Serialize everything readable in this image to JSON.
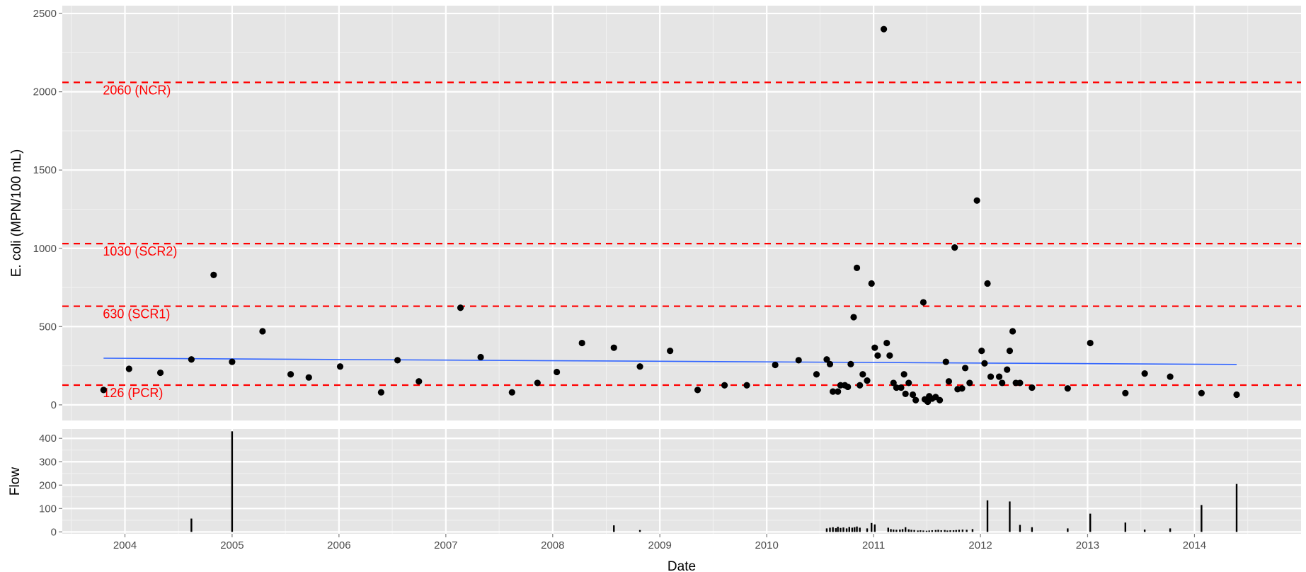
{
  "chart_data": [
    {
      "type": "scatter",
      "panel": "ecoli",
      "ylabel": "E. coli (MPN/100 mL)",
      "ylim": [
        -100,
        2550
      ],
      "y_ticks": [
        0,
        500,
        1000,
        1500,
        2000,
        2500
      ],
      "y_tick_labels": [
        "0",
        "500",
        "1000",
        "1500",
        "2000",
        "2500"
      ],
      "grid": true,
      "colors": {
        "panel_bg": "#e5e5e5",
        "grid": "#ffffff",
        "points": "#000000",
        "trend": "#3366ff",
        "reference": "#ff0000"
      },
      "reference_lines": [
        {
          "value": 2060,
          "label": "2060 (NCR)"
        },
        {
          "value": 1030,
          "label": "1030 (SCR2)"
        },
        {
          "value": 630,
          "label": "630 (SCR1)"
        },
        {
          "value": 126,
          "label": "126 (PCR)"
        }
      ],
      "trend_line": {
        "x": [
          "2003-10-20",
          "2014-05-25"
        ],
        "y": [
          298,
          258
        ]
      },
      "points": [
        [
          "2003-10-20",
          95
        ],
        [
          "2004-01-15",
          230
        ],
        [
          "2004-05-01",
          205
        ],
        [
          "2004-08-15",
          290
        ],
        [
          "2004-10-30",
          830
        ],
        [
          "2005-01-01",
          275
        ],
        [
          "2005-04-15",
          470
        ],
        [
          "2005-07-20",
          195
        ],
        [
          "2005-09-20",
          175
        ],
        [
          "2006-01-05",
          245
        ],
        [
          "2006-05-25",
          80
        ],
        [
          "2006-07-20",
          285
        ],
        [
          "2006-10-01",
          150
        ],
        [
          "2007-02-20",
          620
        ],
        [
          "2007-04-30",
          305
        ],
        [
          "2007-08-15",
          80
        ],
        [
          "2007-11-10",
          140
        ],
        [
          "2008-01-15",
          210
        ],
        [
          "2008-04-10",
          395
        ],
        [
          "2008-07-28",
          365
        ],
        [
          "2008-10-25",
          245
        ],
        [
          "2009-02-05",
          345
        ],
        [
          "2009-05-10",
          95
        ],
        [
          "2009-08-10",
          125
        ],
        [
          "2009-10-25",
          125
        ],
        [
          "2010-01-30",
          255
        ],
        [
          "2010-04-20",
          285
        ],
        [
          "2010-06-20",
          195
        ],
        [
          "2010-07-25",
          290
        ],
        [
          "2010-08-05",
          260
        ],
        [
          "2010-08-15",
          85
        ],
        [
          "2010-09-01",
          85
        ],
        [
          "2010-09-10",
          125
        ],
        [
          "2010-09-25",
          125
        ],
        [
          "2010-10-05",
          115
        ],
        [
          "2010-10-15",
          260
        ],
        [
          "2010-10-25",
          560
        ],
        [
          "2010-11-05",
          875
        ],
        [
          "2010-11-15",
          125
        ],
        [
          "2010-11-25",
          195
        ],
        [
          "2010-12-10",
          155
        ],
        [
          "2010-12-25",
          775
        ],
        [
          "2011-01-05",
          365
        ],
        [
          "2011-01-15",
          315
        ],
        [
          "2011-02-05",
          2400
        ],
        [
          "2011-02-15",
          395
        ],
        [
          "2011-02-25",
          315
        ],
        [
          "2011-03-10",
          140
        ],
        [
          "2011-03-20",
          110
        ],
        [
          "2011-04-05",
          110
        ],
        [
          "2011-04-15",
          195
        ],
        [
          "2011-04-20",
          70
        ],
        [
          "2011-05-01",
          140
        ],
        [
          "2011-05-15",
          65
        ],
        [
          "2011-05-25",
          30
        ],
        [
          "2011-06-20",
          655
        ],
        [
          "2011-06-25",
          35
        ],
        [
          "2011-07-05",
          20
        ],
        [
          "2011-07-10",
          55
        ],
        [
          "2011-07-20",
          40
        ],
        [
          "2011-08-01",
          50
        ],
        [
          "2011-08-15",
          30
        ],
        [
          "2011-09-05",
          275
        ],
        [
          "2011-09-15",
          150
        ],
        [
          "2011-10-05",
          1005
        ],
        [
          "2011-10-15",
          100
        ],
        [
          "2011-10-30",
          105
        ],
        [
          "2011-11-10",
          235
        ],
        [
          "2011-11-25",
          140
        ],
        [
          "2011-12-20",
          1305
        ],
        [
          "2012-01-05",
          345
        ],
        [
          "2012-01-15",
          265
        ],
        [
          "2012-01-25",
          775
        ],
        [
          "2012-02-05",
          180
        ],
        [
          "2012-03-05",
          180
        ],
        [
          "2012-03-15",
          140
        ],
        [
          "2012-04-01",
          225
        ],
        [
          "2012-04-10",
          345
        ],
        [
          "2012-04-20",
          470
        ],
        [
          "2012-05-01",
          140
        ],
        [
          "2012-05-15",
          140
        ],
        [
          "2012-06-25",
          110
        ],
        [
          "2012-10-25",
          105
        ],
        [
          "2013-01-10",
          395
        ],
        [
          "2013-05-10",
          75
        ],
        [
          "2013-07-15",
          200
        ],
        [
          "2013-10-10",
          180
        ],
        [
          "2014-01-25",
          75
        ],
        [
          "2014-05-25",
          65
        ]
      ]
    },
    {
      "type": "bar",
      "panel": "flow",
      "xlabel": "Date",
      "ylabel": "Flow",
      "ylim": [
        -8,
        440
      ],
      "y_ticks": [
        0,
        100,
        200,
        300,
        400
      ],
      "y_tick_labels": [
        "0",
        "100",
        "200",
        "300",
        "400"
      ],
      "xlim": [
        "2003-06-01",
        "2014-12-31"
      ],
      "x_ticks": [
        "2004-01-01",
        "2005-01-01",
        "2006-01-01",
        "2007-01-01",
        "2008-01-01",
        "2009-01-01",
        "2010-01-01",
        "2011-01-01",
        "2012-01-01",
        "2013-01-01",
        "2014-01-01"
      ],
      "x_tick_labels": [
        "2004",
        "2005",
        "2006",
        "2007",
        "2008",
        "2009",
        "2010",
        "2011",
        "2012",
        "2013",
        "2014"
      ],
      "grid": true,
      "bars": [
        [
          "2004-08-15",
          57
        ],
        [
          "2005-01-01",
          430
        ],
        [
          "2008-07-28",
          28
        ],
        [
          "2008-10-25",
          8
        ],
        [
          "2010-07-25",
          15
        ],
        [
          "2010-08-05",
          18
        ],
        [
          "2010-08-15",
          20
        ],
        [
          "2010-08-25",
          16
        ],
        [
          "2010-09-01",
          22
        ],
        [
          "2010-09-10",
          17
        ],
        [
          "2010-09-20",
          19
        ],
        [
          "2010-10-01",
          15
        ],
        [
          "2010-10-10",
          21
        ],
        [
          "2010-10-20",
          18
        ],
        [
          "2010-10-28",
          20
        ],
        [
          "2010-11-05",
          23
        ],
        [
          "2010-11-15",
          18
        ],
        [
          "2010-12-10",
          15
        ],
        [
          "2010-12-25",
          38
        ],
        [
          "2011-01-05",
          32
        ],
        [
          "2011-02-20",
          18
        ],
        [
          "2011-03-01",
          12
        ],
        [
          "2011-03-10",
          10
        ],
        [
          "2011-03-20",
          9
        ],
        [
          "2011-04-01",
          10
        ],
        [
          "2011-04-10",
          12
        ],
        [
          "2011-04-20",
          20
        ],
        [
          "2011-05-01",
          11
        ],
        [
          "2011-05-10",
          9
        ],
        [
          "2011-05-20",
          8
        ],
        [
          "2011-06-01",
          6
        ],
        [
          "2011-06-10",
          7
        ],
        [
          "2011-06-20",
          6
        ],
        [
          "2011-07-01",
          5
        ],
        [
          "2011-07-10",
          6
        ],
        [
          "2011-07-20",
          7
        ],
        [
          "2011-08-01",
          8
        ],
        [
          "2011-08-10",
          9
        ],
        [
          "2011-08-20",
          7
        ],
        [
          "2011-09-01",
          8
        ],
        [
          "2011-09-10",
          6
        ],
        [
          "2011-09-20",
          7
        ],
        [
          "2011-10-01",
          7
        ],
        [
          "2011-10-10",
          8
        ],
        [
          "2011-10-20",
          9
        ],
        [
          "2011-11-01",
          10
        ],
        [
          "2011-11-15",
          9
        ],
        [
          "2011-12-05",
          12
        ],
        [
          "2012-01-25",
          135
        ],
        [
          "2012-04-10",
          130
        ],
        [
          "2012-05-15",
          30
        ],
        [
          "2012-06-25",
          20
        ],
        [
          "2012-10-25",
          15
        ],
        [
          "2013-01-10",
          78
        ],
        [
          "2013-05-10",
          40
        ],
        [
          "2013-07-15",
          10
        ],
        [
          "2013-10-10",
          15
        ],
        [
          "2014-01-25",
          115
        ],
        [
          "2014-05-25",
          205
        ]
      ]
    }
  ]
}
